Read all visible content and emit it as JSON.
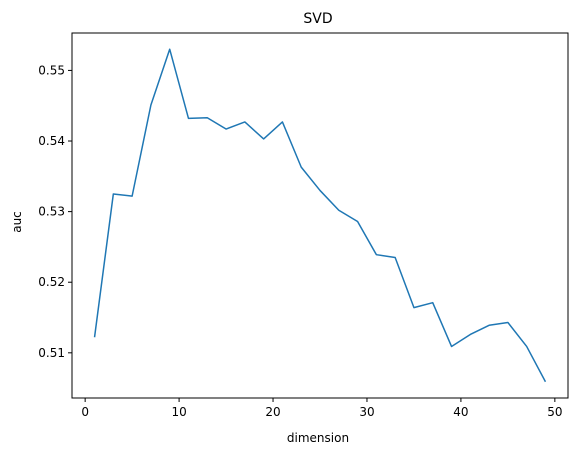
{
  "chart_data": {
    "type": "line",
    "title": "SVD",
    "xlabel": "dimension",
    "ylabel": "auc",
    "xlim": [
      -1.4,
      51.4
    ],
    "ylim": [
      0.5036,
      0.5553
    ],
    "x_ticks": [
      0,
      10,
      20,
      30,
      40,
      50
    ],
    "y_ticks": [
      0.51,
      0.52,
      0.53,
      0.54,
      0.55
    ],
    "y_tick_labels": [
      "0.51",
      "0.52",
      "0.53",
      "0.54",
      "0.55"
    ],
    "grid": false,
    "series": [
      {
        "color": "#1f77b4",
        "x": [
          1,
          3,
          5,
          7,
          9,
          11,
          13,
          15,
          17,
          19,
          21,
          23,
          25,
          27,
          29,
          31,
          33,
          35,
          37,
          39,
          41,
          43,
          45,
          47,
          49
        ],
        "y": [
          0.5122,
          0.5325,
          0.5322,
          0.5451,
          0.553,
          0.5432,
          0.5433,
          0.5417,
          0.5427,
          0.5403,
          0.5427,
          0.5363,
          0.533,
          0.5302,
          0.5286,
          0.5239,
          0.5235,
          0.5164,
          0.5171,
          0.5109,
          0.5126,
          0.5139,
          0.5143,
          0.5109,
          0.5059
        ]
      }
    ]
  }
}
